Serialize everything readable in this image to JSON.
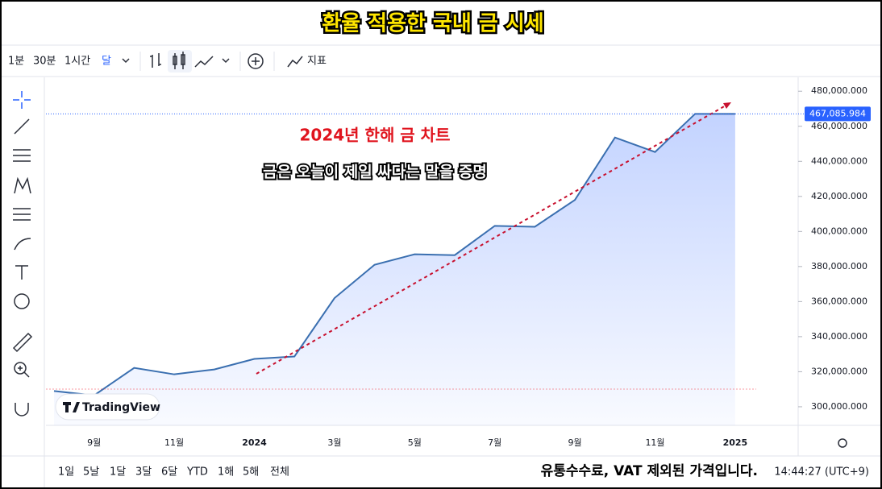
{
  "title": "환율 적용한 국내 금 시세",
  "toolbar": {
    "intervals": [
      "1분",
      "30분",
      "1시간",
      "달"
    ],
    "indicator": "지표"
  },
  "logo": "TradingView",
  "range_bar": [
    "1일",
    "5날",
    "1달",
    "3달",
    "6달",
    "YTD",
    "1해",
    "5해",
    "전체"
  ],
  "footer": {
    "note": "유통수수료, VAT 제외된 가격입니다.",
    "time": "14:44:27 (UTC+9)"
  },
  "chart_data": {
    "type": "area",
    "annotations": [
      "2024년 한해 금 차트",
      "금은 오늘이 제일 싸다는 말을 증명"
    ],
    "categories": [
      null,
      "9월",
      null,
      "11월",
      null,
      "2024",
      null,
      "3월",
      null,
      "5월",
      null,
      "7월",
      null,
      "9월",
      null,
      "11월",
      null,
      "2025"
    ],
    "values": [
      309000,
      306500,
      322200,
      318500,
      321300,
      327300,
      328700,
      362000,
      381000,
      387000,
      386500,
      403200,
      402700,
      418000,
      453600,
      445300,
      467085.984,
      467085.984
    ],
    "color": "#2962ff",
    "line_color": "#3a6fb0",
    "last_price": {
      "value": 467085.984,
      "label": "467,085.984"
    },
    "ylim": [
      289400,
      487000
    ],
    "yticks": [
      {
        "value": 300000,
        "label": "300,000.000"
      },
      {
        "value": 320000,
        "label": "320,000.000"
      },
      {
        "value": 340000,
        "label": "340,000.000"
      },
      {
        "value": 360000,
        "label": "360,000.000"
      },
      {
        "value": 380000,
        "label": "380,000.000"
      },
      {
        "value": 400000,
        "label": "400,000.000"
      },
      {
        "value": 420000,
        "label": "420,000.000"
      },
      {
        "value": 440000,
        "label": "440,000.000"
      },
      {
        "value": 460000,
        "label": "460,000.000"
      },
      {
        "value": 480000,
        "label": "480,000.000"
      }
    ],
    "grid": false
  }
}
